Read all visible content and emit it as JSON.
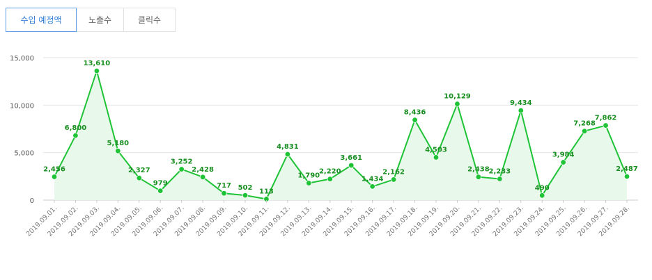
{
  "tabs": [
    {
      "label": "수입 예정액",
      "active": true
    },
    {
      "label": "노출수",
      "active": false
    },
    {
      "label": "클릭수",
      "active": false
    }
  ],
  "colors": {
    "line": "#1ec336",
    "area": "#e8f8ea",
    "grid": "#e6e6e6",
    "active_tab": "#2f7fd8",
    "data_label": "#1a8f22"
  },
  "chart_data": {
    "type": "area",
    "title": "",
    "xlabel": "",
    "ylabel": "",
    "ylim": [
      0,
      15000
    ],
    "yticks": [
      {
        "value": 0,
        "label": "0"
      },
      {
        "value": 5000,
        "label": "5,000"
      },
      {
        "value": 10000,
        "label": "10,000"
      },
      {
        "value": 15000,
        "label": "15,000"
      }
    ],
    "grid": true,
    "legend": "none",
    "categories": [
      "2019.09.01.",
      "2019.09.02.",
      "2019.09.03.",
      "2019.09.04.",
      "2019.09.05.",
      "2019.09.06.",
      "2019.09.07.",
      "2019.09.08.",
      "2019.09.09.",
      "2019.09.10.",
      "2019.09.11.",
      "2019.09.12.",
      "2019.09.13.",
      "2019.09.14.",
      "2019.09.15.",
      "2019.09.16.",
      "2019.09.17.",
      "2019.09.18.",
      "2019.09.19.",
      "2019.09.20.",
      "2019.09.21.",
      "2019.09.22.",
      "2019.09.23.",
      "2019.09.24.",
      "2019.09.25.",
      "2019.09.26.",
      "2019.09.27.",
      "2019.09.28."
    ],
    "values": [
      2456,
      6800,
      13610,
      5180,
      2327,
      979,
      3252,
      2428,
      717,
      502,
      113,
      4831,
      1790,
      2220,
      3661,
      1434,
      2162,
      8436,
      4503,
      10129,
      2438,
      2233,
      9434,
      490,
      3984,
      7268,
      7862,
      2487
    ],
    "value_labels": [
      "2,456",
      "6,800",
      "13,610",
      "5,180",
      "2,327",
      "979",
      "3,252",
      "2,428",
      "717",
      "502",
      "113",
      "4,831",
      "1,790",
      "2,220",
      "3,661",
      "1,434",
      "2,162",
      "8,436",
      "4,503",
      "10,129",
      "2,438",
      "2,233",
      "9,434",
      "490",
      "3,984",
      "7,268",
      "7,862",
      "2,487"
    ]
  }
}
